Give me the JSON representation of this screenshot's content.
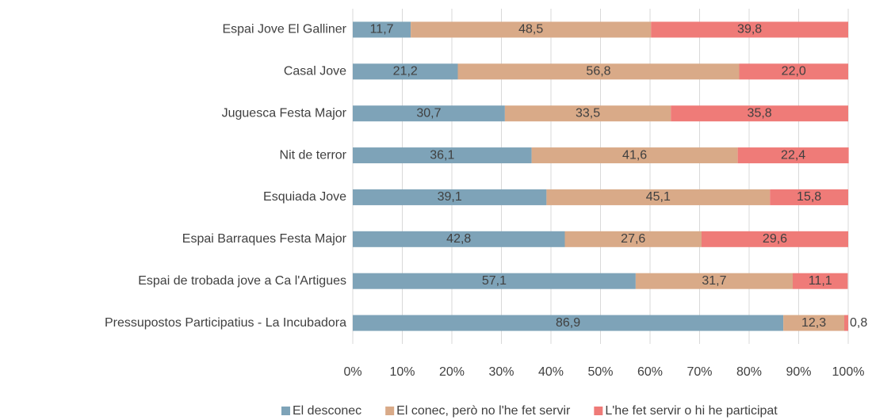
{
  "chart_data": {
    "type": "stacked_bar_horizontal",
    "categories": [
      "Espai Jove El Galliner",
      "Casal Jove",
      "Juguesca Festa Major",
      "Nit de terror",
      "Esquiada Jove",
      "Espai Barraques Festa Major",
      "Espai de trobada jove a Ca l'Artigues",
      "Pressupostos Participatius - La Incubadora"
    ],
    "series": [
      {
        "name": "El desconec",
        "color": "#7ea3b8",
        "values": [
          11.7,
          21.2,
          30.7,
          36.1,
          39.1,
          42.8,
          57.1,
          86.9
        ],
        "value_labels": [
          "11,7",
          "21,2",
          "30,7",
          "36,1",
          "39,1",
          "42,8",
          "57,1",
          "86,9"
        ]
      },
      {
        "name": "El conec, però no l'he fet servir",
        "color": "#d9aa88",
        "values": [
          48.5,
          56.8,
          33.5,
          41.6,
          45.1,
          27.6,
          31.7,
          12.3
        ],
        "value_labels": [
          "48,5",
          "56,8",
          "33,5",
          "41,6",
          "45,1",
          "27,6",
          "31,7",
          "12,3"
        ]
      },
      {
        "name": "L'he fet servir o hi he participat",
        "color": "#ef7b78",
        "values": [
          39.8,
          22.0,
          35.8,
          22.4,
          15.8,
          29.6,
          11.1,
          0.8
        ],
        "value_labels": [
          "39,8",
          "22,0",
          "35,8",
          "22,4",
          "15,8",
          "29,6",
          "11,1",
          "0,8"
        ]
      }
    ],
    "xlim": [
      0,
      100
    ],
    "xticks": [
      {
        "value": 0,
        "label": "0%"
      },
      {
        "value": 10,
        "label": "10%"
      },
      {
        "value": 20,
        "label": "20%"
      },
      {
        "value": 30,
        "label": "30%"
      },
      {
        "value": 40,
        "label": "40%"
      },
      {
        "value": 50,
        "label": "50%"
      },
      {
        "value": 60,
        "label": "60%"
      },
      {
        "value": 70,
        "label": "70%"
      },
      {
        "value": 80,
        "label": "80%"
      },
      {
        "value": 90,
        "label": "90%"
      },
      {
        "value": 100,
        "label": "100%"
      }
    ],
    "grid": true,
    "legend": "bottom"
  }
}
